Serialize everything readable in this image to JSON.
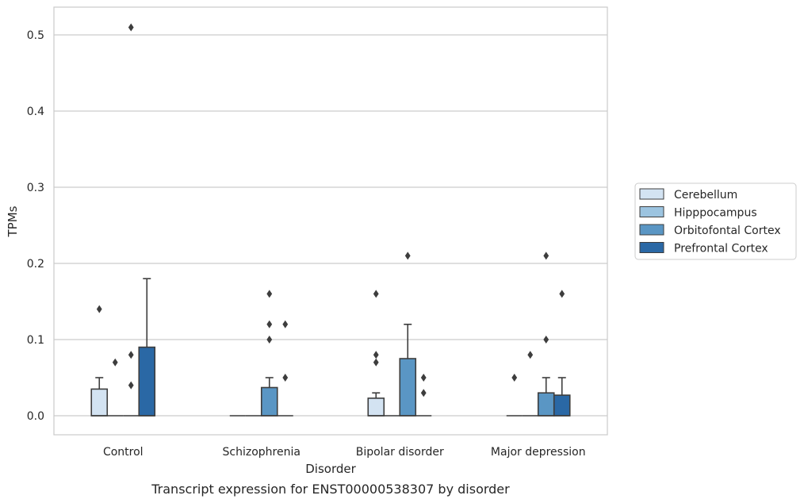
{
  "chart_data": {
    "type": "box",
    "xlabel": "Disorder",
    "ylabel": "TPMs",
    "caption": "Transcript expression for ENST00000538307 by disorder",
    "ylim": [
      -0.025,
      0.5365
    ],
    "yticks": [
      0.0,
      0.1,
      0.2,
      0.3,
      0.4,
      0.5
    ],
    "ytick_labels": [
      "0.0",
      "0.1",
      "0.2",
      "0.3",
      "0.4",
      "0.5"
    ],
    "grid": "horizontal",
    "legend_position": "right",
    "categories": [
      "Control",
      "Schizophrenia",
      "Bipolar disorder",
      "Major depression"
    ],
    "series": [
      {
        "name": "Cerebellum",
        "color": "#d3e3f2",
        "boxes": [
          {
            "q1": 0.0,
            "median": 0.0,
            "q3": 0.035,
            "whisker_low": 0.0,
            "whisker_high": 0.05,
            "outliers": [
              0.14
            ]
          },
          {
            "q1": 0.0,
            "median": 0.0,
            "q3": 0.0,
            "whisker_low": 0.0,
            "whisker_high": 0.0,
            "outliers": []
          },
          {
            "q1": 0.0,
            "median": 0.0,
            "q3": 0.023,
            "whisker_low": 0.0,
            "whisker_high": 0.03,
            "outliers": [
              0.07,
              0.08,
              0.16
            ]
          },
          {
            "q1": 0.0,
            "median": 0.0,
            "q3": 0.0,
            "whisker_low": 0.0,
            "whisker_high": 0.0,
            "outliers": [
              0.05
            ]
          }
        ]
      },
      {
        "name": "Hipppocampus",
        "color": "#9cc4e0",
        "boxes": [
          {
            "q1": 0.0,
            "median": 0.0,
            "q3": 0.0,
            "whisker_low": 0.0,
            "whisker_high": 0.0,
            "outliers": [
              0.07
            ]
          },
          {
            "q1": 0.0,
            "median": 0.0,
            "q3": 0.0,
            "whisker_low": 0.0,
            "whisker_high": 0.0,
            "outliers": []
          },
          {
            "q1": 0.0,
            "median": 0.0,
            "q3": 0.0,
            "whisker_low": 0.0,
            "whisker_high": 0.0,
            "outliers": []
          },
          {
            "q1": 0.0,
            "median": 0.0,
            "q3": 0.0,
            "whisker_low": 0.0,
            "whisker_high": 0.0,
            "outliers": [
              0.08
            ]
          }
        ]
      },
      {
        "name": "Orbitofontal Cortex",
        "color": "#5a96c4",
        "boxes": [
          {
            "q1": 0.0,
            "median": 0.0,
            "q3": 0.0,
            "whisker_low": 0.0,
            "whisker_high": 0.0,
            "outliers": [
              0.04,
              0.08,
              0.51
            ]
          },
          {
            "q1": 0.0,
            "median": 0.0,
            "q3": 0.037,
            "whisker_low": 0.0,
            "whisker_high": 0.05,
            "outliers": [
              0.1,
              0.12,
              0.16
            ]
          },
          {
            "q1": 0.0,
            "median": 0.0,
            "q3": 0.075,
            "whisker_low": 0.0,
            "whisker_high": 0.12,
            "outliers": [
              0.21
            ]
          },
          {
            "q1": 0.0,
            "median": 0.0,
            "q3": 0.03,
            "whisker_low": 0.0,
            "whisker_high": 0.05,
            "outliers": [
              0.1,
              0.21
            ]
          }
        ]
      },
      {
        "name": "Prefrontal Cortex",
        "color": "#2a68a5",
        "boxes": [
          {
            "q1": 0.0,
            "median": 0.0,
            "q3": 0.09,
            "whisker_low": 0.0,
            "whisker_high": 0.18,
            "outliers": []
          },
          {
            "q1": 0.0,
            "median": 0.0,
            "q3": 0.0,
            "whisker_low": 0.0,
            "whisker_high": 0.0,
            "outliers": [
              0.05,
              0.12
            ]
          },
          {
            "q1": 0.0,
            "median": 0.0,
            "q3": 0.0,
            "whisker_low": 0.0,
            "whisker_high": 0.0,
            "outliers": [
              0.03,
              0.05
            ]
          },
          {
            "q1": 0.0,
            "median": 0.0,
            "q3": 0.027,
            "whisker_low": 0.0,
            "whisker_high": 0.05,
            "outliers": [
              0.16
            ]
          }
        ]
      }
    ]
  }
}
